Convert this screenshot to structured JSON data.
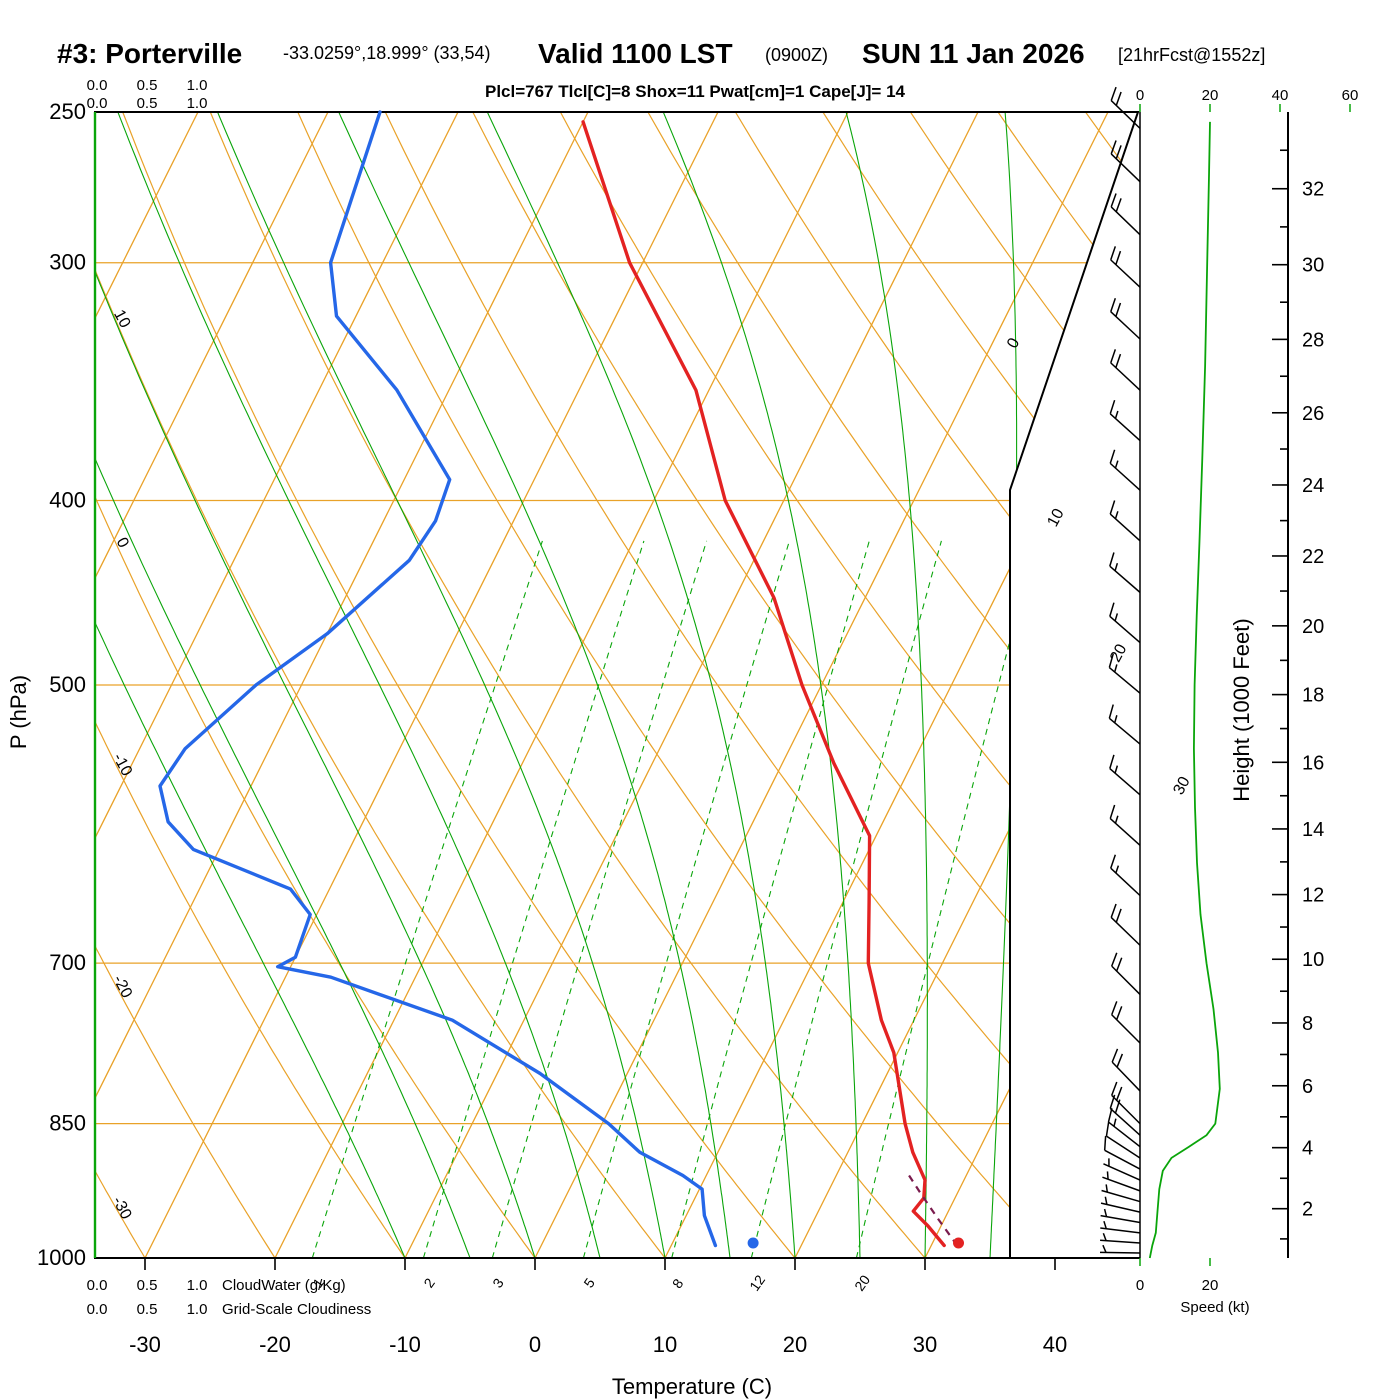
{
  "header": {
    "station": "#3: Porterville",
    "coords": "-33.0259°,18.999° (33,54)",
    "valid_main": "Valid 1100 LST",
    "valid_z": "(0900Z)",
    "valid_date": "SUN 11 Jan 2026",
    "fcst": "[21hrFcst@1552z]",
    "params": "Plcl=767 Tlcl[C]=8 Shox=11 Pwat[cm]=1 Cape[J]= 14"
  },
  "axes": {
    "pressure_label": "P (hPa)",
    "pressure_ticks": [
      250,
      300,
      400,
      500,
      700,
      850,
      1000
    ],
    "temp_label": "Temperature (C)",
    "temp_ticks": [
      -30,
      -20,
      -10,
      0,
      10,
      20,
      30,
      40
    ],
    "height_label": "Height (1000 Feet)",
    "height_ticks": [
      2,
      4,
      6,
      8,
      10,
      12,
      14,
      16,
      18,
      20,
      22,
      24,
      26,
      28,
      30,
      32
    ],
    "speed_label": "Speed (kt)",
    "speed_ticks_top": [
      0,
      20,
      40,
      60
    ],
    "speed_ticks_bottom": [
      0,
      20
    ],
    "cloudwater_label": "CloudWater (g/Kg)",
    "cloudiness_label": "Grid-Scale Cloudiness",
    "cloud_scale_ticks": [
      "0.0",
      "0.5",
      "1.0"
    ],
    "dry_adiabat_labels": [
      10,
      0,
      -10,
      -20,
      -30
    ],
    "isotherm_labels": [
      0,
      10,
      20,
      30
    ],
    "mixing_ratio_labels": [
      1,
      2,
      3,
      5,
      8,
      12,
      20
    ]
  },
  "chart_data": {
    "type": "skewt-log-p-sounding",
    "pressure_range_hpa": [
      1000,
      250
    ],
    "isobars_hpa": [
      300,
      400,
      500,
      700,
      850
    ],
    "isotherms_c": [
      -70,
      -60,
      -50,
      -40,
      -30,
      -20,
      -10,
      0,
      10,
      20,
      30
    ],
    "dry_adiabats_c": [
      -30,
      -20,
      -10,
      0,
      10,
      20,
      30,
      40,
      50,
      60,
      70,
      80,
      90,
      100,
      110,
      120,
      130
    ],
    "moist_adiabats_c": [
      -10,
      -5,
      0,
      5,
      10,
      15,
      20,
      25,
      30,
      35
    ],
    "mixing_ratio_gkg": [
      1,
      2,
      3,
      5,
      8,
      12,
      20
    ],
    "temperature_c": [
      [
        253,
        -40
      ],
      [
        300,
        -31
      ],
      [
        350,
        -21
      ],
      [
        400,
        -14.5
      ],
      [
        450,
        -7
      ],
      [
        500,
        -1.5
      ],
      [
        550,
        4
      ],
      [
        600,
        9.5
      ],
      [
        650,
        12
      ],
      [
        700,
        14.3
      ],
      [
        750,
        17.5
      ],
      [
        780,
        19.7
      ],
      [
        850,
        23.3
      ],
      [
        880,
        25
      ],
      [
        910,
        27
      ],
      [
        930,
        27.6
      ],
      [
        945,
        27.3
      ],
      [
        962,
        29
      ],
      [
        985,
        31
      ]
    ],
    "dewpoint_c": [
      [
        250,
        -56
      ],
      [
        300,
        -54
      ],
      [
        320,
        -51.5
      ],
      [
        350,
        -44
      ],
      [
        390,
        -36.5
      ],
      [
        410,
        -36
      ],
      [
        430,
        -36.5
      ],
      [
        470,
        -40
      ],
      [
        500,
        -43.5
      ],
      [
        540,
        -46.5
      ],
      [
        565,
        -47
      ],
      [
        590,
        -45
      ],
      [
        610,
        -42
      ],
      [
        640,
        -33
      ],
      [
        660,
        -30.5
      ],
      [
        695,
        -30
      ],
      [
        703,
        -31
      ],
      [
        712,
        -26.5
      ],
      [
        750,
        -15.5
      ],
      [
        800,
        -6.7
      ],
      [
        850,
        0.5
      ],
      [
        880,
        4
      ],
      [
        905,
        8.2
      ],
      [
        920,
        10.2
      ],
      [
        950,
        11.4
      ],
      [
        985,
        13.4
      ]
    ],
    "parcel_c": [
      [
        985,
        32
      ],
      [
        955,
        29.6
      ],
      [
        925,
        27.2
      ],
      [
        900,
        25.2
      ]
    ],
    "surface_temp_marker": [
      982,
      32
    ],
    "surface_dewpoint_marker": [
      982,
      16.2
    ],
    "wind_speed_profile_kt": [
      [
        253,
        20
      ],
      [
        270,
        19.7
      ],
      [
        300,
        19.2
      ],
      [
        340,
        18.6
      ],
      [
        380,
        17.8
      ],
      [
        420,
        17
      ],
      [
        460,
        16.2
      ],
      [
        500,
        15.6
      ],
      [
        540,
        15.4
      ],
      [
        580,
        15.7
      ],
      [
        620,
        16.3
      ],
      [
        660,
        17.3
      ],
      [
        700,
        19
      ],
      [
        740,
        21
      ],
      [
        780,
        22.3
      ],
      [
        815,
        22.8
      ],
      [
        850,
        21.5
      ],
      [
        862,
        19
      ],
      [
        874,
        14
      ],
      [
        886,
        9
      ],
      [
        900,
        6.5
      ],
      [
        920,
        5.5
      ],
      [
        945,
        5
      ],
      [
        970,
        4.5
      ],
      [
        985,
        3.5
      ],
      [
        1000,
        2.8
      ]
    ],
    "wind_barbs": [
      [
        255,
        20,
        46
      ],
      [
        272,
        20,
        46
      ],
      [
        290,
        20,
        46
      ],
      [
        309,
        19,
        47
      ],
      [
        329,
        18,
        47
      ],
      [
        350,
        18,
        47
      ],
      [
        372,
        17,
        48
      ],
      [
        395,
        17,
        48
      ],
      [
        420,
        16,
        48
      ],
      [
        447,
        16,
        49
      ],
      [
        475,
        15,
        49
      ],
      [
        505,
        15,
        50
      ],
      [
        537,
        15,
        50
      ],
      [
        571,
        16,
        49
      ],
      [
        607,
        16,
        48
      ],
      [
        645,
        17,
        47
      ],
      [
        685,
        19,
        46
      ],
      [
        727,
        20,
        45
      ],
      [
        771,
        21,
        45
      ],
      [
        817,
        22,
        44
      ],
      [
        850,
        21,
        45
      ],
      [
        862,
        19,
        48
      ],
      [
        874,
        15,
        52
      ],
      [
        886,
        10,
        57
      ],
      [
        898,
        8,
        62
      ],
      [
        910,
        7,
        66
      ],
      [
        922,
        6,
        70
      ],
      [
        934,
        5,
        74
      ],
      [
        946,
        5,
        77
      ],
      [
        958,
        5,
        80
      ],
      [
        970,
        4,
        83
      ],
      [
        982,
        4,
        86
      ],
      [
        994,
        3,
        89
      ]
    ]
  },
  "colors": {
    "grid_orange": "#E9A229",
    "green": "#0AA50A",
    "red": "#E32222",
    "blue": "#2567E8",
    "parcel": "#7A1B4D",
    "params": "#9E2063",
    "black": "#000000"
  }
}
